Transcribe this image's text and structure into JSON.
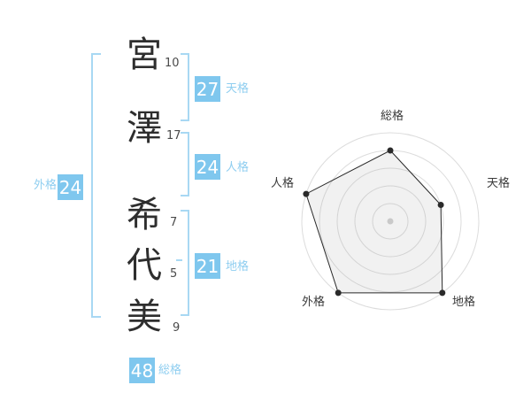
{
  "name_analysis": {
    "characters": [
      {
        "char": "宮",
        "strokes": "10"
      },
      {
        "char": "澤",
        "strokes": "17"
      },
      {
        "char": "希",
        "strokes": "7"
      },
      {
        "char": "代",
        "strokes": "5"
      },
      {
        "char": "美",
        "strokes": "9"
      }
    ],
    "badges": {
      "tenkaku": {
        "value": "27",
        "label": "天格"
      },
      "jinkaku": {
        "value": "24",
        "label": "人格"
      },
      "chikaku": {
        "value": "21",
        "label": "地格"
      },
      "gaikaku": {
        "value": "24",
        "label": "外格"
      },
      "soukaku": {
        "value": "48",
        "label": "総格"
      }
    }
  },
  "chart_data": {
    "type": "radar",
    "axes": [
      {
        "label": "総格",
        "value": 80
      },
      {
        "label": "天格",
        "value": 60
      },
      {
        "label": "地格",
        "value": 100
      },
      {
        "label": "外格",
        "value": 100
      },
      {
        "label": "人格",
        "value": 100
      }
    ],
    "max": 100,
    "max_radius_px": 100,
    "rings": [
      20,
      40,
      60,
      80,
      100
    ],
    "start_axis": "top",
    "direction": "clockwise",
    "legend": "none",
    "grid": "circular"
  },
  "colors": {
    "badge_blue": "#7fc7ee",
    "bracket_blue": "#a8d8f3",
    "badge_label_blue": "#8fcef0",
    "badge_text": "#ffffff",
    "name_text": "#2e2e2e",
    "stroke_count_text": "#4a4a4a",
    "ring_gray": "#dcdcdc",
    "chart_line": "#2a2a2a",
    "chart_fill": "#aaaaaa",
    "chart_fill_opacity": "0.16",
    "chart_center_dot": "#c9c9c9",
    "axis_label": "#3a3a3a"
  }
}
